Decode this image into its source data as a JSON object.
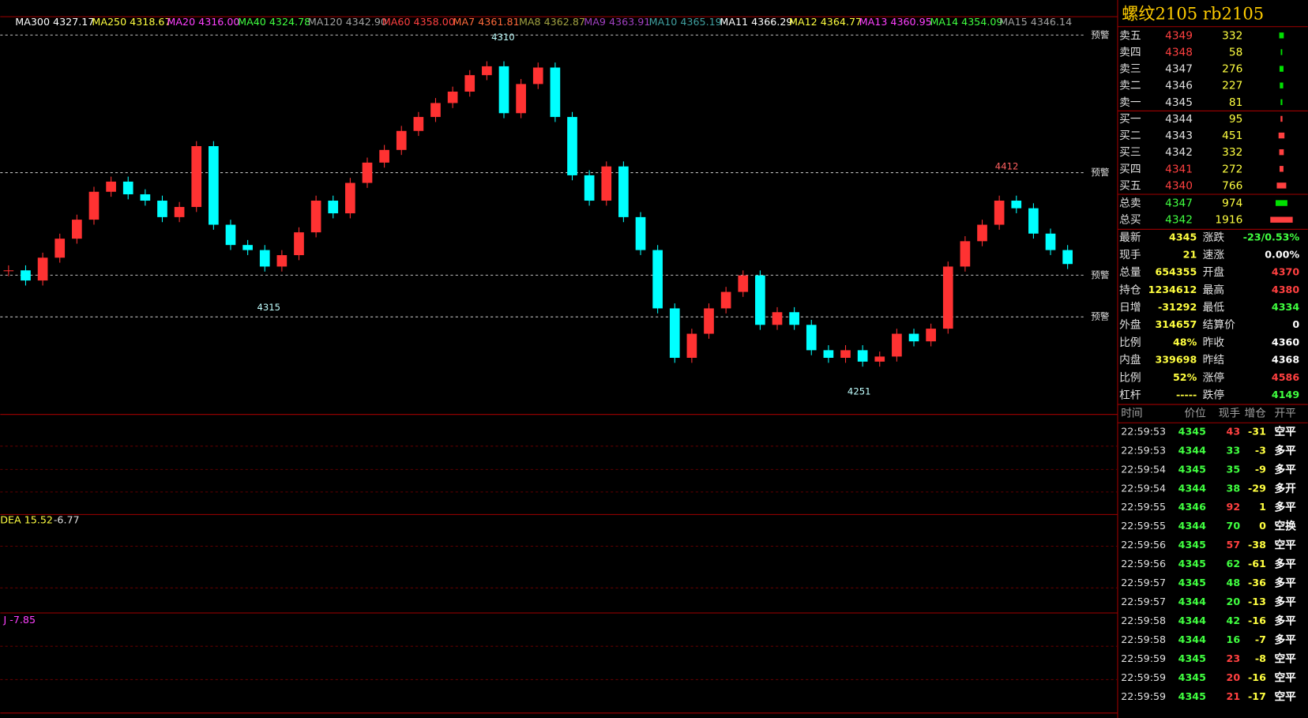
{
  "header": {
    "ma": [
      {
        "text": "MA300 4327.17",
        "color": "#ffffff"
      },
      {
        "text": "MA250 4318.67",
        "color": "#ffff40"
      },
      {
        "text": "MA20 4316.00",
        "color": "#ff40ff"
      },
      {
        "text": "MA40 4324.78",
        "color": "#40ff40"
      },
      {
        "text": "MA120 4342.90",
        "color": "#a0a0a0"
      },
      {
        "text": "MA60 4358.00",
        "color": "#ff4040"
      },
      {
        "text": "MA7 4361.81",
        "color": "#ff6a3a"
      },
      {
        "text": "MA8 4362.87",
        "color": "#a0a040"
      },
      {
        "text": "MA9 4363.91",
        "color": "#a040c0"
      },
      {
        "text": "MA10 4365.19",
        "color": "#40a0a0"
      },
      {
        "text": "MA11 4366.29",
        "color": "#ffffff"
      },
      {
        "text": "MA12 4364.77",
        "color": "#ffff40"
      },
      {
        "text": "MA13 4360.95",
        "color": "#ff40ff"
      },
      {
        "text": "MA14 4354.09",
        "color": "#40ff40"
      },
      {
        "text": "MA15 4346.14",
        "color": "#a0a0a0"
      }
    ]
  },
  "main": {
    "alert": "预警",
    "price_labels": [
      "4310",
      "4315",
      "4251",
      "4412"
    ],
    "candles": [
      4340,
      4332,
      4350,
      4365,
      4380,
      4402,
      4410,
      4400,
      4395,
      4382,
      4390,
      4438,
      4376,
      4360,
      4356,
      4343,
      4352,
      4370,
      4395,
      4385,
      4409,
      4425,
      4435,
      4450,
      4461,
      4472,
      4481,
      4494,
      4501,
      4464,
      4487,
      4500,
      4461,
      4415,
      4395,
      4422,
      4382,
      4356,
      4310,
      4271,
      4290,
      4310,
      4323,
      4336,
      4297,
      4307,
      4297,
      4277,
      4271,
      4277,
      4268,
      4272,
      4290,
      4284,
      4294,
      4343,
      4363,
      4376,
      4395,
      4389,
      4369,
      4356,
      4345
    ],
    "up_color": "#ff3232",
    "down_color": "#00ffff"
  },
  "macd": {
    "label": "DEA 15.52",
    "value": "-6.77"
  },
  "kdj": {
    "label": "J -7.85"
  },
  "quote": {
    "title": "螺纹2105  rb2105",
    "book": [
      {
        "name": "卖五",
        "price": "4349",
        "vol": 332,
        "pcolor": "#ff4040",
        "bar": "#00e000"
      },
      {
        "name": "卖四",
        "price": "4348",
        "vol": 58,
        "pcolor": "#ff4040",
        "bar": "#00e000"
      },
      {
        "name": "卖三",
        "price": "4347",
        "vol": 276,
        "pcolor": "#e0e0e0",
        "bar": "#00e000"
      },
      {
        "name": "卖二",
        "price": "4346",
        "vol": 227,
        "pcolor": "#e0e0e0",
        "bar": "#00e000"
      },
      {
        "name": "卖一",
        "price": "4345",
        "vol": 81,
        "pcolor": "#e0e0e0",
        "bar": "#00e000"
      },
      {
        "name": "买一",
        "price": "4344",
        "vol": 95,
        "pcolor": "#e0e0e0",
        "bar": "#ff4040"
      },
      {
        "name": "买二",
        "price": "4343",
        "vol": 451,
        "pcolor": "#e0e0e0",
        "bar": "#ff4040"
      },
      {
        "name": "买三",
        "price": "4342",
        "vol": 332,
        "pcolor": "#e0e0e0",
        "bar": "#ff4040"
      },
      {
        "name": "买四",
        "price": "4341",
        "vol": 272,
        "pcolor": "#ff4040",
        "bar": "#ff4040"
      },
      {
        "name": "买五",
        "price": "4340",
        "vol": 766,
        "pcolor": "#ff4040",
        "bar": "#ff4040"
      },
      {
        "name": "总卖",
        "price": "4347",
        "vol": 974,
        "pcolor": "#40ff40",
        "bar": "#00e000"
      },
      {
        "name": "总买",
        "price": "4342",
        "vol": 1916,
        "pcolor": "#40ff40",
        "bar": "#ff4040"
      }
    ],
    "stats": [
      [
        "最新",
        "4345",
        "#ffff40",
        "涨跌",
        "-23/0.53%",
        "#40ff40"
      ],
      [
        "现手",
        "21",
        "#ffff40",
        "速涨",
        "0.00%",
        "#ffffff"
      ],
      [
        "总量",
        "654355",
        "#ffff40",
        "开盘",
        "4370",
        "#ff4040"
      ],
      [
        "持仓",
        "1234612",
        "#ffff40",
        "最高",
        "4380",
        "#ff4040"
      ],
      [
        "日增",
        "-31292",
        "#ffff40",
        "最低",
        "4334",
        "#40ff40"
      ],
      [
        "外盘",
        "314657",
        "#ffff40",
        "结算价",
        "0",
        "#ffffff"
      ],
      [
        "比例",
        "48%",
        "#ffff40",
        "昨收",
        "4360",
        "#ffffff"
      ],
      [
        "内盘",
        "339698",
        "#ffff40",
        "昨结",
        "4368",
        "#ffffff"
      ],
      [
        "比例",
        "52%",
        "#ffff40",
        "涨停",
        "4586",
        "#ff4040"
      ],
      [
        "杠杆",
        "-----",
        "#ffff40",
        "跌停",
        "4149",
        "#40ff40"
      ]
    ],
    "ticks_header": [
      "时间",
      "价位",
      "现手",
      "增仓",
      "开平"
    ],
    "ticks": [
      [
        "22:59:53",
        "4345",
        "43",
        "-31",
        "空平",
        "#ff4040"
      ],
      [
        "22:59:53",
        "4344",
        "33",
        "-3",
        "多平",
        "#40ff40"
      ],
      [
        "22:59:54",
        "4345",
        "35",
        "-9",
        "多平",
        "#40ff40"
      ],
      [
        "22:59:54",
        "4344",
        "38",
        "-29",
        "多开",
        "#40ff40"
      ],
      [
        "22:59:55",
        "4346",
        "92",
        "1",
        "多平",
        "#ff4040"
      ],
      [
        "22:59:55",
        "4344",
        "70",
        "0",
        "空换",
        "#40ff40"
      ],
      [
        "22:59:56",
        "4345",
        "57",
        "-38",
        "空平",
        "#ff4040"
      ],
      [
        "22:59:56",
        "4345",
        "62",
        "-61",
        "多平",
        "#40ff40"
      ],
      [
        "22:59:57",
        "4345",
        "48",
        "-36",
        "多平",
        "#40ff40"
      ],
      [
        "22:59:57",
        "4344",
        "20",
        "-13",
        "多平",
        "#40ff40"
      ],
      [
        "22:59:58",
        "4344",
        "42",
        "-16",
        "多平",
        "#40ff40"
      ],
      [
        "22:59:58",
        "4344",
        "16",
        "-7",
        "多平",
        "#40ff40"
      ],
      [
        "22:59:59",
        "4345",
        "23",
        "-8",
        "空平",
        "#ff4040"
      ],
      [
        "22:59:59",
        "4345",
        "20",
        "-16",
        "空平",
        "#ff4040"
      ],
      [
        "22:59:59",
        "4345",
        "21",
        "-17",
        "空平",
        "#ff4040"
      ]
    ]
  }
}
